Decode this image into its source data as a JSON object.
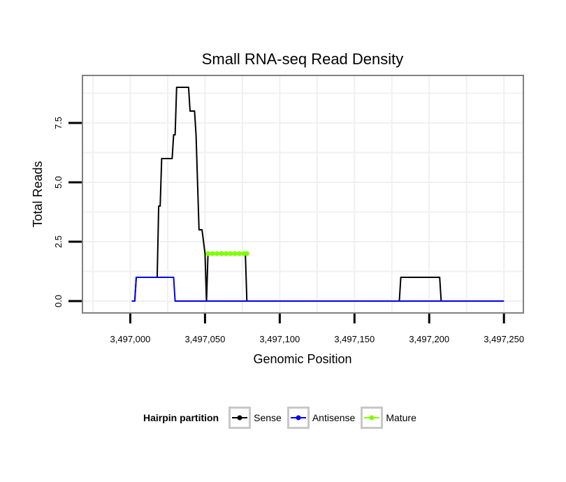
{
  "chart_data": {
    "type": "line",
    "title": "Small RNA-seq Read Density",
    "xlabel": "Genomic Position",
    "ylabel": "Total Reads",
    "xlim": [
      3496968,
      3497263
    ],
    "ylim": [
      -0.5,
      9.5
    ],
    "x_ticks": [
      3497000,
      3497050,
      3497100,
      3497150,
      3497200,
      3497250
    ],
    "x_tick_labels": [
      "3,497,000",
      "3,497,050",
      "3,497,100",
      "3,497,150",
      "3,497,200",
      "3,497,250"
    ],
    "y_ticks": [
      0,
      2.5,
      5,
      7.5
    ],
    "y_tick_labels": [
      "0.0",
      "2.5",
      "5.0",
      "7.5"
    ],
    "grid": true,
    "legend_position": "bottom",
    "legend_title": "Hairpin partition",
    "series": [
      {
        "name": "Sense",
        "color": "#000000",
        "points": [
          [
            3497001,
            0
          ],
          [
            3497003,
            0
          ],
          [
            3497004,
            1
          ],
          [
            3497005,
            1
          ],
          [
            3497018,
            1
          ],
          [
            3497019,
            4
          ],
          [
            3497020,
            4
          ],
          [
            3497021,
            6
          ],
          [
            3497028,
            6
          ],
          [
            3497029,
            7
          ],
          [
            3497030,
            7
          ],
          [
            3497031,
            9
          ],
          [
            3497039,
            9
          ],
          [
            3497040,
            8
          ],
          [
            3497043,
            8
          ],
          [
            3497044,
            7
          ],
          [
            3497045,
            5
          ],
          [
            3497046,
            3
          ],
          [
            3497048,
            3
          ],
          [
            3497050,
            2
          ],
          [
            3497051,
            0
          ],
          [
            3497052,
            2
          ],
          [
            3497077,
            2
          ],
          [
            3497078,
            0
          ],
          [
            3497180,
            0
          ],
          [
            3497181,
            1
          ],
          [
            3497207,
            1
          ],
          [
            3497208,
            0
          ],
          [
            3497250,
            0
          ]
        ]
      },
      {
        "name": "Antisense",
        "color": "#0000ff",
        "points": [
          [
            3497001,
            0
          ],
          [
            3497003,
            0
          ],
          [
            3497004,
            1
          ],
          [
            3497029,
            1
          ],
          [
            3497030,
            0
          ],
          [
            3497250,
            0
          ]
        ]
      },
      {
        "name": "Mature",
        "color": "#80ff00",
        "points": [
          [
            3497052,
            2
          ],
          [
            3497055,
            2
          ],
          [
            3497058,
            2
          ],
          [
            3497061,
            2
          ],
          [
            3497064,
            2
          ],
          [
            3497067,
            2
          ],
          [
            3497070,
            2
          ],
          [
            3497073,
            2
          ],
          [
            3497076,
            2
          ],
          [
            3497078,
            2
          ]
        ]
      }
    ]
  }
}
